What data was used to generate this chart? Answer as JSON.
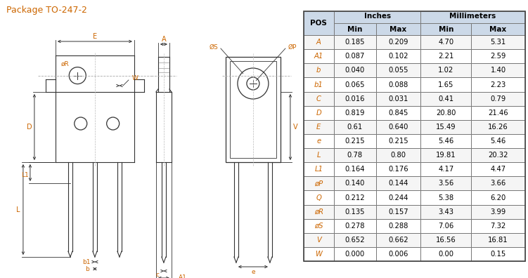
{
  "title": "Package TO-247-2",
  "title_color": "#cc6600",
  "bg_color": "#ffffff",
  "pos_color": "#cc6600",
  "val_color": "#000000",
  "header_color": "#000000",
  "rows": [
    [
      "A",
      "0.185",
      "0.209",
      "4.70",
      "5.31"
    ],
    [
      "A1",
      "0.087",
      "0.102",
      "2.21",
      "2.59"
    ],
    [
      "b",
      "0.040",
      "0.055",
      "1.02",
      "1.40"
    ],
    [
      "b1",
      "0.065",
      "0.088",
      "1.65",
      "2.23"
    ],
    [
      "C",
      "0.016",
      "0.031",
      "0.41",
      "0.79"
    ],
    [
      "D",
      "0.819",
      "0.845",
      "20.80",
      "21.46"
    ],
    [
      "E",
      "0.61",
      "0.640",
      "15.49",
      "16.26"
    ],
    [
      "e",
      "0.215",
      "0.215",
      "5.46",
      "5.46"
    ],
    [
      "L",
      "0.78",
      "0.80",
      "19.81",
      "20.32"
    ],
    [
      "L1",
      "0.164",
      "0.176",
      "4.17",
      "4.47"
    ],
    [
      "øP",
      "0.140",
      "0.144",
      "3.56",
      "3.66"
    ],
    [
      "Q",
      "0.212",
      "0.244",
      "5.38",
      "6.20"
    ],
    [
      "øR",
      "0.135",
      "0.157",
      "3.43",
      "3.99"
    ],
    [
      "øS",
      "0.278",
      "0.288",
      "7.06",
      "7.32"
    ],
    [
      "V",
      "0.652",
      "0.662",
      "16.56",
      "16.81"
    ],
    [
      "W",
      "0.000",
      "0.006",
      "0.00",
      "0.15"
    ]
  ],
  "drawing_line_color": "#333333",
  "dim_line_color": "#333333",
  "label_color": "#cc6600",
  "header_bg": "#ccd9e8"
}
